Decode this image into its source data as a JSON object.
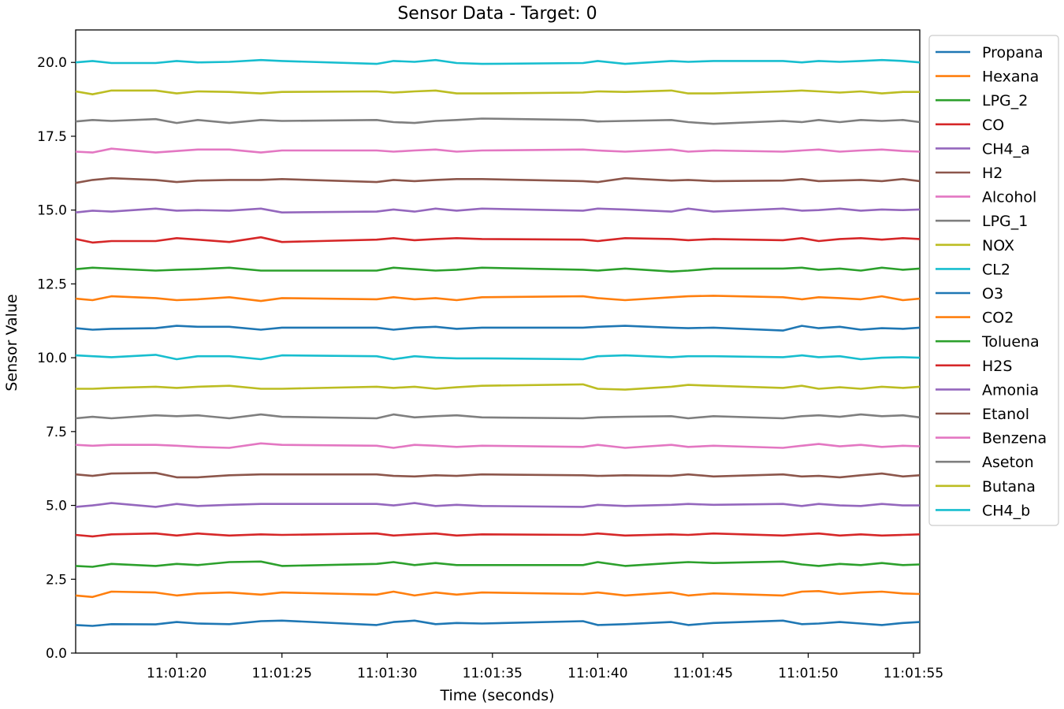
{
  "chart_data": {
    "type": "line",
    "title": "Sensor Data - Target: 0",
    "xlabel": "Time (seconds)",
    "ylabel": "Sensor Value",
    "x_range": [
      "11:01:15.2",
      "11:01:55.3"
    ],
    "ylim": [
      0,
      21.1
    ],
    "grid": false,
    "legend_position": "outside-top-right",
    "x_ticks": [
      "11:01:20",
      "11:01:25",
      "11:01:30",
      "11:01:35",
      "11:01:40",
      "11:01:45",
      "11:01:50",
      "11:01:55"
    ],
    "y_ticks": [
      "0.0",
      "2.5",
      "5.0",
      "7.5",
      "10.0",
      "12.5",
      "15.0",
      "17.5",
      "20.0"
    ],
    "x": [
      "11:01:15.2",
      "11:01:16.0",
      "11:01:16.9",
      "11:01:19.0",
      "11:01:20.0",
      "11:01:21.0",
      "11:01:22.5",
      "11:01:24.0",
      "11:01:25.0",
      "11:01:29.5",
      "11:01:30.3",
      "11:01:31.3",
      "11:01:32.3",
      "11:01:33.3",
      "11:01:34.5",
      "11:01:39.3",
      "11:01:40.0",
      "11:01:41.3",
      "11:01:43.5",
      "11:01:44.3",
      "11:01:45.5",
      "11:01:48.8",
      "11:01:49.7",
      "11:01:50.5",
      "11:01:51.5",
      "11:01:52.5",
      "11:01:53.5",
      "11:01:54.5",
      "11:01:55.3"
    ],
    "series": [
      {
        "name": "Propana",
        "color": "#1f77b4",
        "values": [
          0.95,
          0.92,
          0.98,
          0.97,
          1.05,
          1.0,
          0.98,
          1.08,
          1.1,
          0.95,
          1.05,
          1.1,
          0.98,
          1.02,
          1.0,
          1.08,
          0.95,
          0.98,
          1.05,
          0.95,
          1.02,
          1.1,
          0.98,
          1.0,
          1.05,
          1.0,
          0.95,
          1.02,
          1.05
        ]
      },
      {
        "name": "Hexana",
        "color": "#ff7f0e",
        "values": [
          1.95,
          1.9,
          2.08,
          2.05,
          1.95,
          2.02,
          2.05,
          1.98,
          2.05,
          1.98,
          2.08,
          1.95,
          2.05,
          1.98,
          2.05,
          2.0,
          2.05,
          1.95,
          2.05,
          1.95,
          2.02,
          1.95,
          2.08,
          2.1,
          2.0,
          2.05,
          2.08,
          2.02,
          2.0
        ]
      },
      {
        "name": "LPG_2",
        "color": "#2ca02c",
        "values": [
          2.95,
          2.92,
          3.02,
          2.95,
          3.02,
          2.98,
          3.08,
          3.1,
          2.95,
          3.02,
          3.08,
          2.98,
          3.05,
          2.98,
          2.98,
          2.98,
          3.08,
          2.95,
          3.05,
          3.08,
          3.05,
          3.1,
          3.0,
          2.95,
          3.02,
          2.98,
          3.05,
          2.98,
          3.0
        ]
      },
      {
        "name": "CO",
        "color": "#d62728",
        "values": [
          4.0,
          3.95,
          4.02,
          4.05,
          3.98,
          4.05,
          3.98,
          4.02,
          4.0,
          4.05,
          3.98,
          4.02,
          4.05,
          3.98,
          4.02,
          4.0,
          4.05,
          3.98,
          4.02,
          4.0,
          4.05,
          3.98,
          4.02,
          4.05,
          3.98,
          4.02,
          3.98,
          4.0,
          4.02
        ]
      },
      {
        "name": "CH4_a",
        "color": "#9467bd",
        "values": [
          4.95,
          5.0,
          5.08,
          4.95,
          5.05,
          4.98,
          5.02,
          5.05,
          5.05,
          5.05,
          5.0,
          5.08,
          4.98,
          5.02,
          4.98,
          4.95,
          5.02,
          4.98,
          5.02,
          5.05,
          5.02,
          5.05,
          4.98,
          5.05,
          5.0,
          4.98,
          5.05,
          5.0,
          5.0
        ]
      },
      {
        "name": "H2",
        "color": "#8c564b",
        "values": [
          6.05,
          6.0,
          6.08,
          6.1,
          5.95,
          5.95,
          6.02,
          6.05,
          6.05,
          6.05,
          6.0,
          5.98,
          6.02,
          6.0,
          6.05,
          6.02,
          6.0,
          6.02,
          6.0,
          6.05,
          5.98,
          6.05,
          5.98,
          6.0,
          5.95,
          6.02,
          6.08,
          5.98,
          6.02
        ]
      },
      {
        "name": "Alcohol",
        "color": "#e377c2",
        "values": [
          7.05,
          7.02,
          7.05,
          7.05,
          7.02,
          6.98,
          6.95,
          7.1,
          7.05,
          7.02,
          6.95,
          7.05,
          7.02,
          6.98,
          7.02,
          6.98,
          7.05,
          6.95,
          7.05,
          6.98,
          7.02,
          6.95,
          7.02,
          7.08,
          7.0,
          7.05,
          6.98,
          7.02,
          7.0
        ]
      },
      {
        "name": "Aseton",
        "color": "#7f7f7f",
        "values": [
          7.95,
          8.0,
          7.95,
          8.05,
          8.02,
          8.05,
          7.95,
          8.08,
          8.0,
          7.95,
          8.08,
          7.98,
          8.02,
          8.05,
          7.98,
          7.95,
          7.98,
          8.0,
          8.02,
          7.95,
          8.02,
          7.95,
          8.02,
          8.05,
          8.0,
          8.08,
          8.02,
          8.05,
          7.98
        ]
      },
      {
        "name": "Butana",
        "color": "#bcbd22",
        "values": [
          8.95,
          8.95,
          8.98,
          9.02,
          8.98,
          9.02,
          9.05,
          8.95,
          8.95,
          9.02,
          8.98,
          9.02,
          8.95,
          9.0,
          9.05,
          9.1,
          8.95,
          8.92,
          9.02,
          9.08,
          9.05,
          8.98,
          9.05,
          8.95,
          9.0,
          8.95,
          9.02,
          8.98,
          9.02
        ]
      },
      {
        "name": "CH4_b",
        "color": "#17becf",
        "values": [
          10.08,
          10.05,
          10.02,
          10.1,
          9.95,
          10.05,
          10.05,
          9.95,
          10.08,
          10.05,
          9.95,
          10.05,
          10.0,
          9.98,
          9.98,
          9.95,
          10.05,
          10.08,
          10.02,
          10.05,
          10.05,
          10.02,
          10.08,
          10.02,
          10.05,
          9.95,
          10.0,
          10.02,
          10.0
        ]
      },
      {
        "name": "O3",
        "color": "#1f77b4",
        "values": [
          11.0,
          10.95,
          10.98,
          11.0,
          11.08,
          11.05,
          11.05,
          10.95,
          11.02,
          11.02,
          10.95,
          11.02,
          11.05,
          10.98,
          11.02,
          11.02,
          11.05,
          11.08,
          11.02,
          11.0,
          11.02,
          10.92,
          11.08,
          11.0,
          11.05,
          10.95,
          11.0,
          10.98,
          11.02
        ]
      },
      {
        "name": "CO2",
        "color": "#ff7f0e",
        "values": [
          12.0,
          11.95,
          12.08,
          12.02,
          11.95,
          11.98,
          12.05,
          11.92,
          12.02,
          11.98,
          12.05,
          11.98,
          12.02,
          11.95,
          12.05,
          12.08,
          12.02,
          11.95,
          12.05,
          12.08,
          12.1,
          12.05,
          11.98,
          12.05,
          12.02,
          11.98,
          12.08,
          11.95,
          12.0
        ]
      },
      {
        "name": "Toluena",
        "color": "#2ca02c",
        "values": [
          13.0,
          13.05,
          13.02,
          12.95,
          12.98,
          13.0,
          13.05,
          12.95,
          12.95,
          12.95,
          13.05,
          13.0,
          12.95,
          12.98,
          13.05,
          12.98,
          12.95,
          13.02,
          12.92,
          12.95,
          13.02,
          13.02,
          13.05,
          12.98,
          13.02,
          12.95,
          13.05,
          12.98,
          13.02
        ]
      },
      {
        "name": "H2S",
        "color": "#d62728",
        "values": [
          14.02,
          13.9,
          13.95,
          13.95,
          14.05,
          14.0,
          13.92,
          14.08,
          13.92,
          14.0,
          14.05,
          13.98,
          14.02,
          14.05,
          14.02,
          14.0,
          13.95,
          14.05,
          14.02,
          13.98,
          14.02,
          13.98,
          14.05,
          13.95,
          14.02,
          14.05,
          14.0,
          14.05,
          14.02
        ]
      },
      {
        "name": "Amonia",
        "color": "#9467bd",
        "values": [
          14.92,
          14.98,
          14.95,
          15.05,
          14.98,
          15.0,
          14.98,
          15.05,
          14.92,
          14.95,
          15.02,
          14.95,
          15.05,
          14.98,
          15.05,
          14.98,
          15.05,
          15.02,
          14.95,
          15.05,
          14.95,
          15.05,
          14.98,
          15.0,
          15.05,
          14.98,
          15.02,
          15.0,
          15.02
        ]
      },
      {
        "name": "Etanol",
        "color": "#8c564b",
        "values": [
          15.92,
          16.02,
          16.08,
          16.02,
          15.95,
          16.0,
          16.02,
          16.02,
          16.05,
          15.95,
          16.02,
          15.98,
          16.02,
          16.05,
          16.05,
          15.98,
          15.95,
          16.08,
          16.0,
          16.02,
          15.98,
          16.0,
          16.05,
          15.98,
          16.0,
          16.02,
          15.98,
          16.05,
          15.98
        ]
      },
      {
        "name": "Benzena",
        "color": "#e377c2",
        "values": [
          16.98,
          16.95,
          17.08,
          16.95,
          17.0,
          17.05,
          17.05,
          16.95,
          17.02,
          17.02,
          16.98,
          17.02,
          17.05,
          16.98,
          17.02,
          17.05,
          17.02,
          16.98,
          17.05,
          16.98,
          17.02,
          16.98,
          17.02,
          17.05,
          16.98,
          17.02,
          17.05,
          17.0,
          16.98
        ]
      },
      {
        "name": "LPG_1",
        "color": "#7f7f7f",
        "values": [
          18.0,
          18.05,
          18.02,
          18.08,
          17.95,
          18.05,
          17.95,
          18.05,
          18.02,
          18.05,
          17.98,
          17.95,
          18.02,
          18.05,
          18.1,
          18.05,
          18.0,
          18.02,
          18.05,
          17.98,
          17.92,
          18.02,
          17.98,
          18.05,
          17.98,
          18.05,
          18.02,
          18.05,
          17.98
        ]
      },
      {
        "name": "NOX",
        "color": "#bcbd22",
        "values": [
          19.02,
          18.92,
          19.05,
          19.05,
          18.95,
          19.02,
          19.0,
          18.95,
          19.0,
          19.02,
          18.98,
          19.02,
          19.05,
          18.95,
          18.95,
          18.98,
          19.02,
          19.0,
          19.05,
          18.95,
          18.95,
          19.02,
          19.05,
          19.02,
          18.98,
          19.02,
          18.95,
          19.0,
          19.0
        ]
      },
      {
        "name": "CL2",
        "color": "#17becf",
        "values": [
          20.0,
          20.05,
          19.98,
          19.98,
          20.05,
          20.0,
          20.02,
          20.08,
          20.05,
          19.95,
          20.05,
          20.02,
          20.08,
          19.98,
          19.95,
          19.98,
          20.05,
          19.95,
          20.05,
          20.02,
          20.05,
          20.05,
          20.0,
          20.05,
          20.02,
          20.05,
          20.08,
          20.05,
          20.0
        ]
      }
    ],
    "legend_order": [
      "Propana",
      "Hexana",
      "LPG_2",
      "CO",
      "CH4_a",
      "H2",
      "Alcohol",
      "LPG_1",
      "NOX",
      "CL2",
      "O3",
      "CO2",
      "Toluena",
      "H2S",
      "Amonia",
      "Etanol",
      "Benzena",
      "Aseton",
      "Butana",
      "CH4_b"
    ]
  }
}
